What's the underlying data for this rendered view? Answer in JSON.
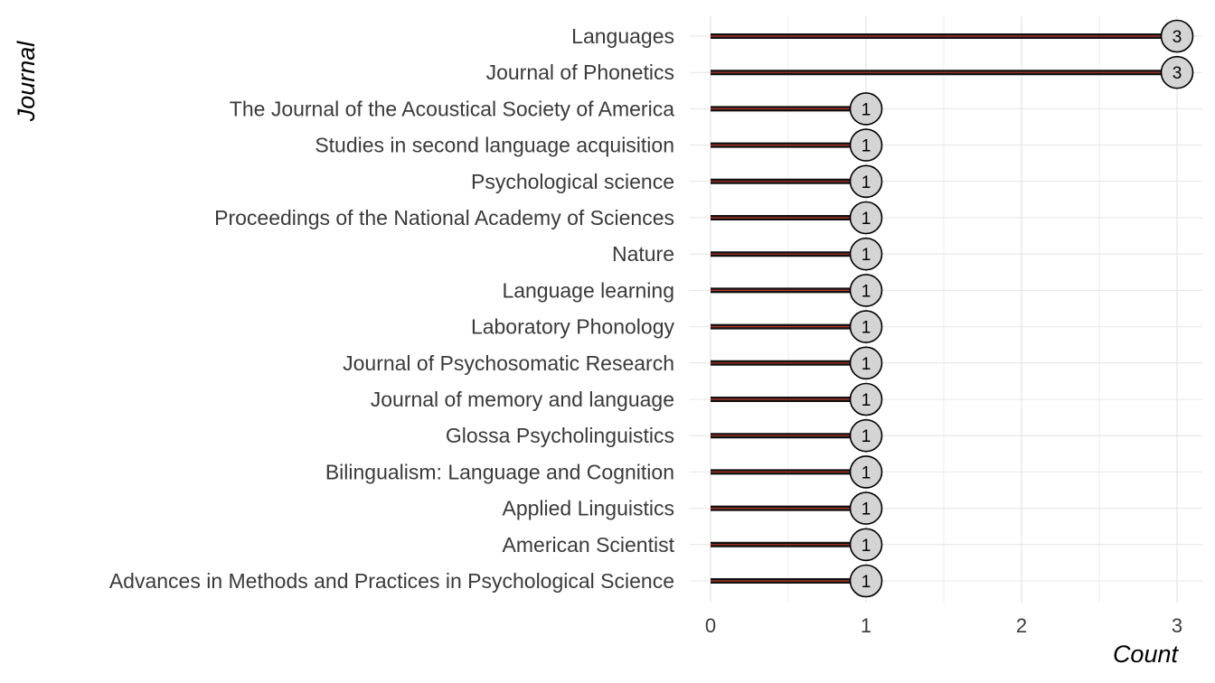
{
  "chart_data": {
    "type": "lollipop",
    "orientation": "horizontal",
    "categories": [
      "Languages",
      "Journal of Phonetics",
      "The Journal of the Acoustical Society of America",
      "Studies in second language acquisition",
      "Psychological science",
      "Proceedings of the National Academy of Sciences",
      "Nature",
      "Language learning",
      "Laboratory Phonology",
      "Journal of Psychosomatic Research",
      "Journal of memory and language",
      "Glossa Psycholinguistics",
      "Bilingualism: Language and Cognition",
      "Applied Linguistics",
      "American Scientist",
      "Advances in Methods and Practices in Psychological Science"
    ],
    "values": [
      3,
      3,
      1,
      1,
      1,
      1,
      1,
      1,
      1,
      1,
      1,
      1,
      1,
      1,
      1,
      1
    ],
    "xlabel": "Count",
    "ylabel": "Journal",
    "xlim": [
      0,
      3
    ],
    "xticks": [
      "0",
      "1",
      "2",
      "3"
    ],
    "grid": true,
    "colors": {
      "stem": "#111111",
      "stem_highlight": "#c0392b",
      "point_fill": "#d4d4d4",
      "point_stroke": "#000000",
      "grid": "#e4e4e4"
    }
  }
}
